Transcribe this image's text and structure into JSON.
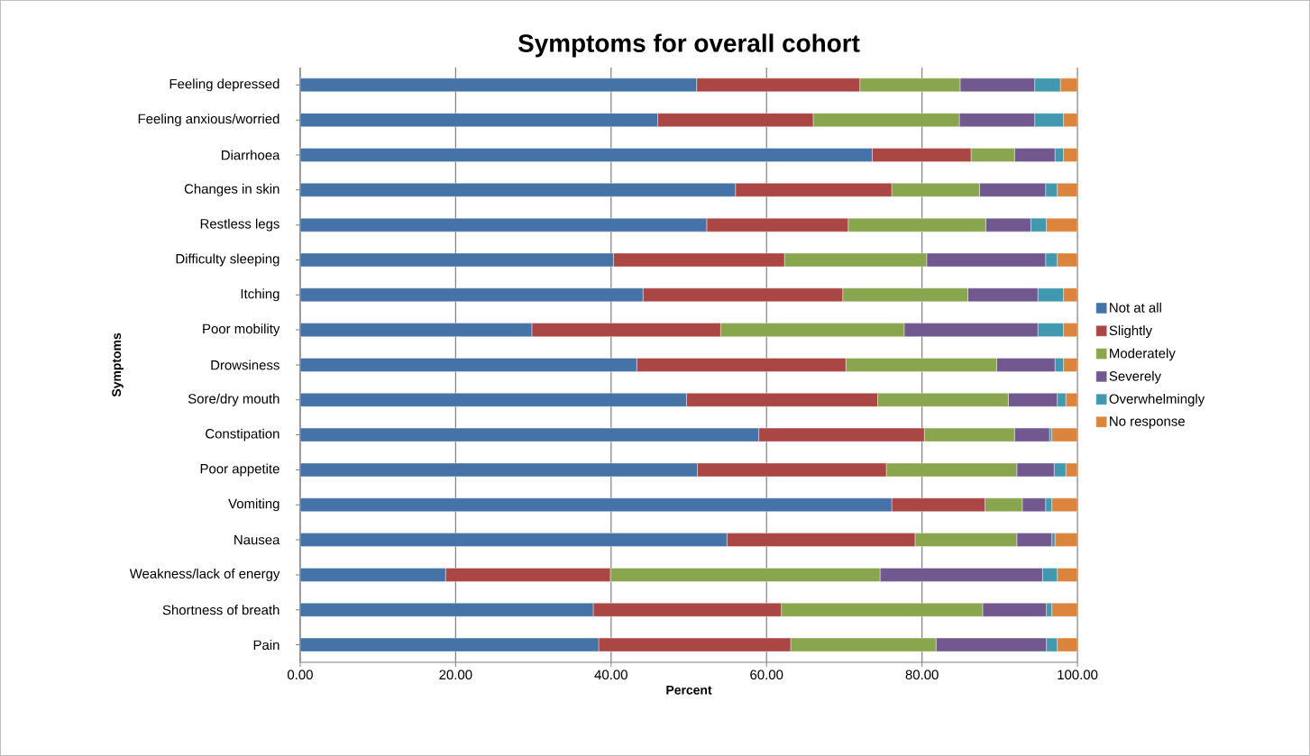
{
  "chart_data": {
    "type": "bar",
    "orientation": "horizontal",
    "stacked": true,
    "title": "Symptoms for overall cohort",
    "xlabel": "Percent",
    "ylabel": "Symptoms",
    "categories": [
      "Feeling depressed",
      "Feeling anxious/worried",
      "Diarrhoea",
      "Changes in skin",
      "Restless legs",
      "Difficulty sleeping",
      "Itching",
      "Poor mobility",
      "Drowsiness",
      "Sore/dry mouth",
      "Constipation",
      "Poor appetite",
      "Vomiting",
      "Nausea",
      "Weakness/lack of energy",
      "Shortness of breath",
      "Pain"
    ],
    "series": [
      {
        "name": "Not at all",
        "color": "#4572a7",
        "values": [
          51.0,
          46.0,
          73.6,
          56.0,
          52.3,
          40.3,
          44.1,
          29.8,
          43.3,
          49.7,
          59.0,
          51.1,
          76.1,
          54.9,
          18.7,
          37.7,
          38.4
        ]
      },
      {
        "name": "Slightly",
        "color": "#aa4643",
        "values": [
          21.0,
          20.0,
          12.7,
          20.1,
          18.2,
          22.0,
          25.7,
          24.3,
          26.9,
          24.6,
          21.3,
          24.3,
          12.0,
          24.2,
          21.2,
          24.2,
          24.7
        ]
      },
      {
        "name": "Moderately",
        "color": "#89a54e",
        "values": [
          12.9,
          18.8,
          5.6,
          11.3,
          17.7,
          18.3,
          16.1,
          23.6,
          19.4,
          16.8,
          11.6,
          16.8,
          4.8,
          13.1,
          34.7,
          25.9,
          18.7
        ]
      },
      {
        "name": "Severely",
        "color": "#71588f",
        "values": [
          9.6,
          9.7,
          5.2,
          8.5,
          5.8,
          15.3,
          9.0,
          17.2,
          7.5,
          6.3,
          4.5,
          4.8,
          3.0,
          4.5,
          20.9,
          8.2,
          14.2
        ]
      },
      {
        "name": "Overwhelmingly",
        "color": "#4198af",
        "values": [
          3.3,
          3.7,
          1.1,
          1.5,
          2.0,
          1.5,
          3.3,
          3.3,
          1.1,
          1.1,
          0.3,
          1.5,
          0.8,
          0.4,
          1.9,
          0.7,
          1.4
        ]
      },
      {
        "name": "No response",
        "color": "#db843d",
        "values": [
          2.2,
          1.8,
          1.8,
          2.6,
          4.0,
          2.6,
          1.8,
          1.8,
          1.8,
          1.5,
          3.3,
          1.5,
          3.3,
          2.9,
          2.6,
          3.3,
          2.6
        ]
      }
    ],
    "xlim": [
      0,
      100
    ],
    "xticks": [
      {
        "value": 0,
        "label": "0.00"
      },
      {
        "value": 20,
        "label": "20.00"
      },
      {
        "value": 40,
        "label": "40.00"
      },
      {
        "value": 60,
        "label": "60.00"
      },
      {
        "value": 80,
        "label": "80.00"
      },
      {
        "value": 100,
        "label": "100.00"
      }
    ],
    "grid": "x",
    "legend": "right"
  }
}
